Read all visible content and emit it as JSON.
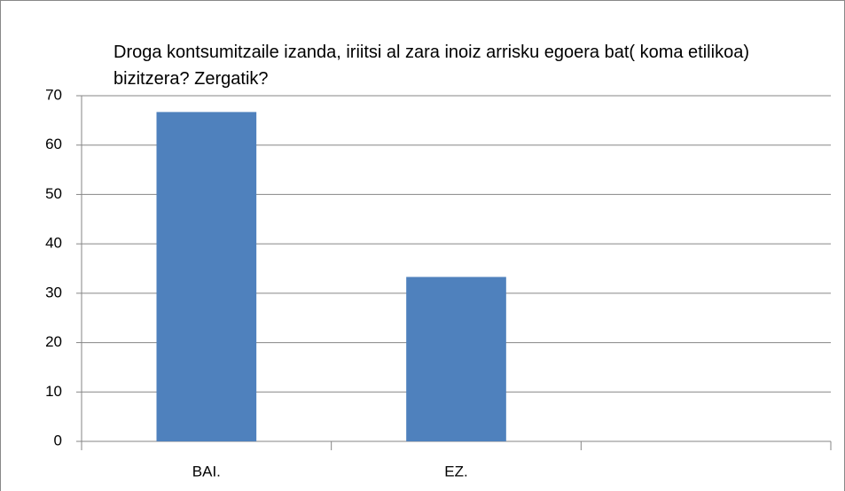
{
  "chart_data": {
    "type": "bar",
    "title": "Droga kontsumitzaile izanda, iriitsi al zara inoiz arrisku egoera bat( koma etilikoa) bizitzera? Zergatik?",
    "categories": [
      "BAI.",
      "EZ.",
      null
    ],
    "values": [
      66.7,
      33.3,
      null
    ],
    "color": "#4f81bd",
    "ylim": [
      0,
      70
    ],
    "yticks": [
      0,
      10,
      20,
      30,
      40,
      50,
      60,
      70
    ],
    "grid": true
  }
}
